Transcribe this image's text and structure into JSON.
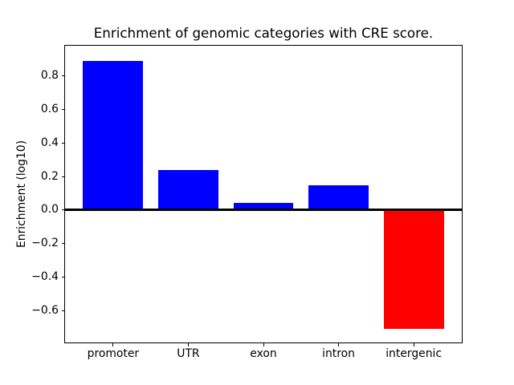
{
  "window": {
    "background_color": "#ffffff",
    "text_color": "#000000",
    "axis_color": "#000000"
  },
  "chart_data": {
    "type": "bar",
    "title": "Enrichment of genomic categories with CRE score.",
    "xlabel": "",
    "ylabel": "Enrichment (log10)",
    "categories": [
      "promoter",
      "UTR",
      "exon",
      "intron",
      "intergenic"
    ],
    "values": [
      0.89,
      0.24,
      0.04,
      0.15,
      -0.71
    ],
    "bar_colors": [
      "#0000ff",
      "#0000ff",
      "#0000ff",
      "#0000ff",
      "#ff0000"
    ],
    "positive_color": "#0000ff",
    "negative_color": "#ff0000",
    "ylim": [
      -0.79,
      0.98
    ],
    "yticks": [
      0.8,
      0.6,
      0.4,
      0.2,
      0.0,
      -0.2,
      -0.4,
      -0.6
    ],
    "ytick_labels": [
      "0.8",
      "0.6",
      "0.4",
      "0.2",
      "0.0",
      "−0.2",
      "−0.4",
      "−0.6"
    ],
    "bar_width_fraction": 0.8,
    "grid": false,
    "legend": false,
    "zero_line": true
  }
}
